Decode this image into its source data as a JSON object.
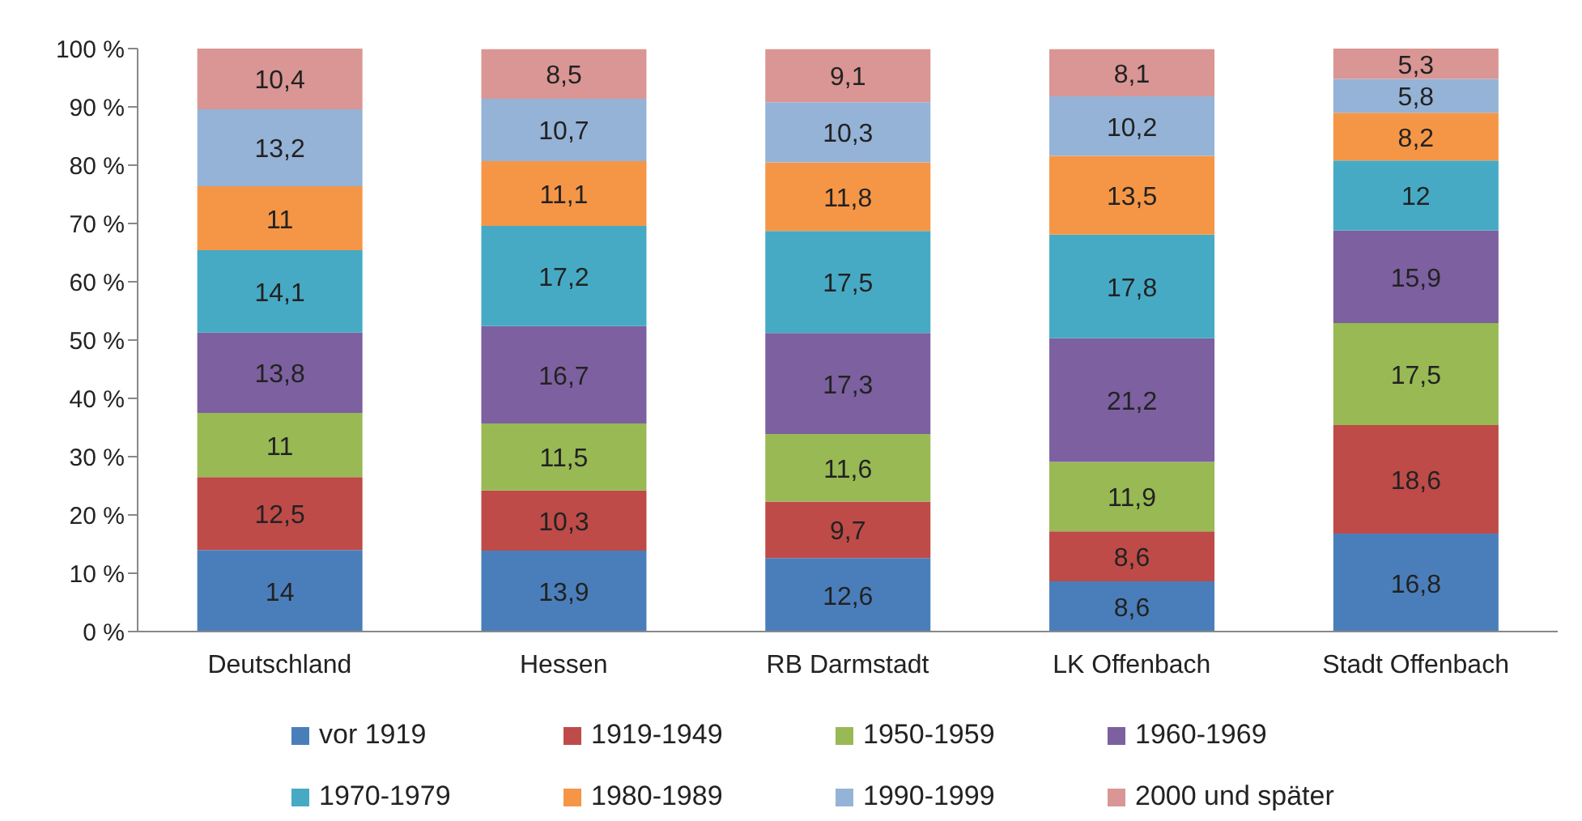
{
  "chart_data": {
    "type": "bar",
    "stacked": true,
    "categories": [
      "Deutschland",
      "Hessen",
      "RB Darmstadt",
      "LK Offenbach",
      "Stadt Offenbach"
    ],
    "ylim": [
      0,
      100
    ],
    "yticks": [
      {
        "value": 0,
        "label": "0 %"
      },
      {
        "value": 10,
        "label": "10 %"
      },
      {
        "value": 20,
        "label": "20 %"
      },
      {
        "value": 30,
        "label": "30 %"
      },
      {
        "value": 40,
        "label": "40 %"
      },
      {
        "value": 50,
        "label": "50 %"
      },
      {
        "value": 60,
        "label": "60 %"
      },
      {
        "value": 70,
        "label": "70 %"
      },
      {
        "value": 80,
        "label": "80 %"
      },
      {
        "value": 90,
        "label": "90 %"
      },
      {
        "value": 100,
        "label": "100 %"
      }
    ],
    "grid": false,
    "legend": "bottom",
    "series": [
      {
        "name": "vor 1919",
        "color": "#4a7ebb",
        "values": [
          14,
          13.9,
          12.6,
          8.6,
          16.8
        ],
        "value_labels": [
          "14",
          "13,9",
          "12,6",
          "8,6",
          "16,8"
        ]
      },
      {
        "name": "1919-1949",
        "color": "#be4b48",
        "values": [
          12.5,
          10.3,
          9.7,
          8.6,
          18.6
        ],
        "value_labels": [
          "12,5",
          "10,3",
          "9,7",
          "8,6",
          "18,6"
        ]
      },
      {
        "name": "1950-1959",
        "color": "#98b954",
        "values": [
          11,
          11.5,
          11.6,
          11.9,
          17.5
        ],
        "value_labels": [
          "11",
          "11,5",
          "11,6",
          "11,9",
          "17,5"
        ]
      },
      {
        "name": "1960-1969",
        "color": "#7d60a0",
        "values": [
          13.8,
          16.7,
          17.3,
          21.2,
          15.9
        ],
        "value_labels": [
          "13,8",
          "16,7",
          "17,3",
          "21,2",
          "15,9"
        ]
      },
      {
        "name": "1970-1979",
        "color": "#46aac5",
        "values": [
          14.1,
          17.2,
          17.5,
          17.8,
          12
        ],
        "value_labels": [
          "14,1",
          "17,2",
          "17,5",
          "17,8",
          "12"
        ]
      },
      {
        "name": "1980-1989",
        "color": "#f59646",
        "values": [
          11,
          11.1,
          11.8,
          13.5,
          8.2
        ],
        "value_labels": [
          "11",
          "11,1",
          "11,8",
          "13,5",
          "8,2"
        ]
      },
      {
        "name": "1990-1999",
        "color": "#95b3d7",
        "values": [
          13.2,
          10.7,
          10.3,
          10.2,
          5.8
        ],
        "value_labels": [
          "13,2",
          "10,7",
          "10,3",
          "10,2",
          "5,8"
        ]
      },
      {
        "name": "2000 und später",
        "color": "#d99694",
        "values": [
          10.4,
          8.5,
          9.1,
          8.1,
          5.3
        ],
        "value_labels": [
          "10,4",
          "8,5",
          "9,1",
          "8,1",
          "5,3"
        ]
      }
    ]
  }
}
